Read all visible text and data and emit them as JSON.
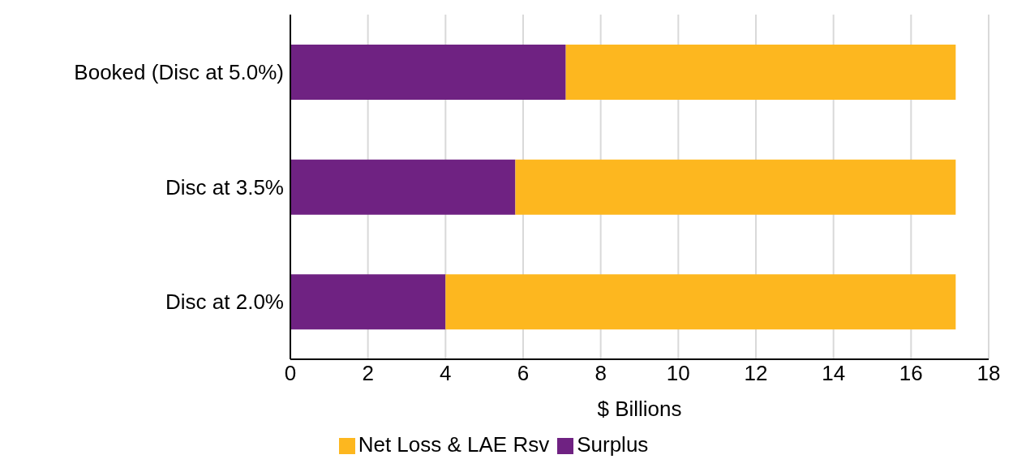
{
  "chart_data": {
    "type": "bar",
    "orientation": "horizontal",
    "stacked": true,
    "categories": [
      "Booked (Disc at 5.0%)",
      "Disc at 3.5%",
      "Disc at 2.0%"
    ],
    "series": [
      {
        "name": "Surplus",
        "color": "#6f2282",
        "values": [
          7.1,
          5.8,
          4.0
        ]
      },
      {
        "name": "Net Loss & LAE Rsv",
        "color": "#fdb71f",
        "values": [
          10.05,
          11.35,
          13.15
        ]
      }
    ],
    "xlim": [
      0,
      18
    ],
    "xticks": [
      0,
      2,
      4,
      6,
      8,
      10,
      12,
      14,
      16,
      18
    ],
    "xlabel": "$ Billions",
    "grid": "x",
    "legend": "bottom"
  }
}
